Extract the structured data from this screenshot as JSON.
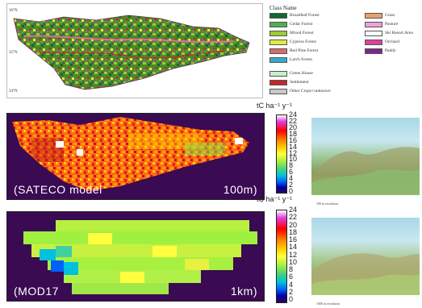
{
  "land_cover_map": {
    "lat_labels": [
      "36°N",
      "35°N",
      "34°N"
    ]
  },
  "legend": {
    "title": "Class Name",
    "items": [
      {
        "label": "Broadleaf Forest",
        "color": "#0c6b2e"
      },
      {
        "label": "Cedar Forest",
        "color": "#4bb04f"
      },
      {
        "label": "Mixed Forest",
        "color": "#9acd32"
      },
      {
        "label": "Cypress Forest",
        "color": "#e8e840"
      },
      {
        "label": "Red Pine Forest",
        "color": "#d86a6a"
      },
      {
        "label": "Larch Forest",
        "color": "#38a8c8"
      },
      {
        "label": "Green House",
        "color": "#c8f0c8"
      },
      {
        "label": "Settlement",
        "color": "#c0282a"
      },
      {
        "label": "Other Crops+unknown",
        "color": "#c8c8c8"
      },
      {
        "label": "Grass",
        "color": "#e8a070"
      },
      {
        "label": "Pasture",
        "color": "#f0a0d8"
      },
      {
        "label": "Ski Resort Area",
        "color": "#ffffff"
      },
      {
        "label": "Orchard",
        "color": "#e040a0"
      },
      {
        "label": "Paddy",
        "color": "#7a2a8a"
      }
    ]
  },
  "panels": {
    "sateco": {
      "label": "(SATECO model",
      "resolution": "100m)"
    },
    "mod17": {
      "label": "(MOD17",
      "resolution": "1km)"
    }
  },
  "colorbars": {
    "unit": "tC ha⁻¹ y⁻¹",
    "ticks": [
      "24",
      "22",
      "20",
      "18",
      "16",
      "14",
      "12",
      "10",
      "8",
      "6",
      "4",
      "2",
      "0"
    ]
  },
  "views3d": {
    "caption_top": "100 m resolution",
    "caption_bottom": "1000 m resolution"
  },
  "colors": {
    "background_purple": "#3a0a52",
    "colorbar_stops": [
      "#ffffff",
      "#e040e0",
      "#ff0000",
      "#ff8000",
      "#ffd000",
      "#ffff40",
      "#a0f040",
      "#40d080",
      "#00c0e0",
      "#0060ff",
      "#0000a0",
      "#300060"
    ]
  }
}
